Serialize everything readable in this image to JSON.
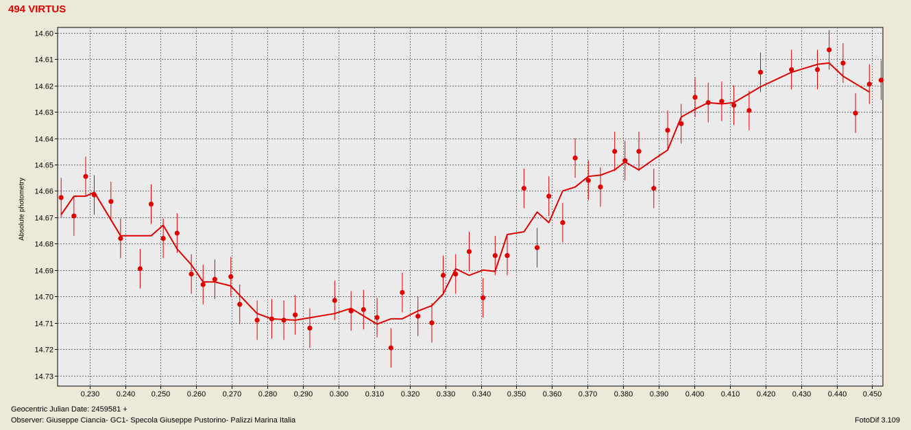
{
  "window": {
    "title": "494 VIRTUS"
  },
  "footer": {
    "xlabel": "Geocentric Julian Date: 2459581 +",
    "observer": "Observer: Giuseppe Ciancia- GC1- Specola Giuseppe Pustorino- Palizzi Marina Italia",
    "software": "FotoDif 3.109"
  },
  "chart_data": {
    "type": "scatter",
    "title": "494 VIRTUS",
    "xlabel": "Geocentric Julian Date: 2459581 +",
    "ylabel": "Absolute photometry",
    "xlim": [
      0.221,
      0.453
    ],
    "ylim": [
      14.598,
      14.734
    ],
    "y_inverted": true,
    "grid": true,
    "marker_color": "#e00000",
    "line_color": "#e00000",
    "xticks": [
      "0.230",
      "0.240",
      "0.250",
      "0.260",
      "0.270",
      "0.280",
      "0.290",
      "0.300",
      "0.310",
      "0.320",
      "0.330",
      "0.340",
      "0.350",
      "0.360",
      "0.370",
      "0.380",
      "0.390",
      "0.400",
      "0.410",
      "0.420",
      "0.430",
      "0.440",
      "0.450"
    ],
    "yticks": [
      "14.60",
      "14.61",
      "14.62",
      "14.63",
      "14.64",
      "14.65",
      "14.66",
      "14.67",
      "14.68",
      "14.69",
      "14.70",
      "14.71",
      "14.72",
      "14.73"
    ],
    "series": [
      {
        "kind": "points_with_errorbars",
        "x": [
          0.222,
          0.2256,
          0.2289,
          0.2313,
          0.236,
          0.2387,
          0.2442,
          0.2473,
          0.2507,
          0.2546,
          0.2586,
          0.2619,
          0.2652,
          0.2697,
          0.2722,
          0.2771,
          0.2812,
          0.2846,
          0.2878,
          0.2919,
          0.2989,
          0.3035,
          0.307,
          0.3108,
          0.3147,
          0.3179,
          0.3223,
          0.3262,
          0.3294,
          0.3329,
          0.3367,
          0.3406,
          0.344,
          0.3474,
          0.3521,
          0.3558,
          0.3591,
          0.363,
          0.3665,
          0.3702,
          0.3736,
          0.3776,
          0.3805,
          0.3844,
          0.3886,
          0.3925,
          0.3963,
          0.4002,
          0.4039,
          0.4077,
          0.4111,
          0.4154,
          0.4186,
          0.4273,
          0.4346,
          0.4379,
          0.4418,
          0.4453,
          0.4492,
          0.4525
        ],
        "y": [
          14.6625,
          14.6695,
          14.6545,
          14.6615,
          14.664,
          14.678,
          14.6895,
          14.665,
          14.678,
          14.676,
          14.6915,
          14.6955,
          14.6935,
          14.6925,
          14.703,
          14.709,
          14.7085,
          14.709,
          14.707,
          14.712,
          14.7015,
          14.7055,
          14.705,
          14.708,
          14.7195,
          14.6985,
          14.7075,
          14.71,
          14.692,
          14.6915,
          14.683,
          14.7005,
          14.6845,
          14.6845,
          14.659,
          14.6815,
          14.662,
          14.672,
          14.6475,
          14.656,
          14.6585,
          14.645,
          14.6485,
          14.645,
          14.659,
          14.637,
          14.6345,
          14.6245,
          14.6265,
          14.626,
          14.6275,
          14.6295,
          14.615,
          14.614,
          14.614,
          14.6065,
          14.6115,
          14.6305,
          14.6195,
          14.618
        ],
        "err": [
          0.0075,
          0.0075,
          0.0075,
          0.0075,
          0.0075,
          0.0075,
          0.0075,
          0.0075,
          0.0075,
          0.0075,
          0.0075,
          0.0075,
          0.0075,
          0.0075,
          0.0075,
          0.0075,
          0.0075,
          0.0075,
          0.0075,
          0.0075,
          0.0075,
          0.0075,
          0.0075,
          0.0075,
          0.0075,
          0.0075,
          0.0075,
          0.0075,
          0.0075,
          0.0075,
          0.0075,
          0.0075,
          0.0075,
          0.0075,
          0.0075,
          0.0075,
          0.0075,
          0.0075,
          0.0075,
          0.0075,
          0.0075,
          0.0075,
          0.0075,
          0.0075,
          0.0075,
          0.0075,
          0.0075,
          0.0075,
          0.0075,
          0.0075,
          0.0075,
          0.0075,
          0.0075,
          0.0075,
          0.0075,
          0.0075,
          0.0075,
          0.0075,
          0.0075,
          0.0075
        ]
      },
      {
        "kind": "line",
        "x": [
          0.222,
          0.2256,
          0.2289,
          0.2313,
          0.2387,
          0.2473,
          0.2507,
          0.2546,
          0.2586,
          0.2619,
          0.2652,
          0.2697,
          0.2771,
          0.2812,
          0.2878,
          0.2989,
          0.3035,
          0.3108,
          0.3147,
          0.3179,
          0.3223,
          0.3262,
          0.3294,
          0.3329,
          0.3367,
          0.3406,
          0.344,
          0.3474,
          0.3521,
          0.3558,
          0.3591,
          0.363,
          0.3665,
          0.3702,
          0.3736,
          0.3776,
          0.3805,
          0.3844,
          0.3886,
          0.3925,
          0.3963,
          0.4002,
          0.4039,
          0.4077,
          0.4111,
          0.4186,
          0.4273,
          0.4346,
          0.4379,
          0.4418,
          0.4492
        ],
        "y": [
          14.669,
          14.662,
          14.662,
          14.6605,
          14.677,
          14.677,
          14.673,
          14.682,
          14.688,
          14.6945,
          14.6945,
          14.696,
          14.7065,
          14.7085,
          14.709,
          14.7065,
          14.7045,
          14.7105,
          14.7085,
          14.7085,
          14.7055,
          14.7035,
          14.699,
          14.6895,
          14.692,
          14.69,
          14.6905,
          14.6765,
          14.6755,
          14.668,
          14.672,
          14.66,
          14.6585,
          14.6545,
          14.654,
          14.652,
          14.649,
          14.652,
          14.648,
          14.6445,
          14.632,
          14.629,
          14.6265,
          14.627,
          14.6265,
          14.6205,
          14.615,
          14.612,
          14.6115,
          14.6165,
          14.6225
        ]
      }
    ]
  }
}
